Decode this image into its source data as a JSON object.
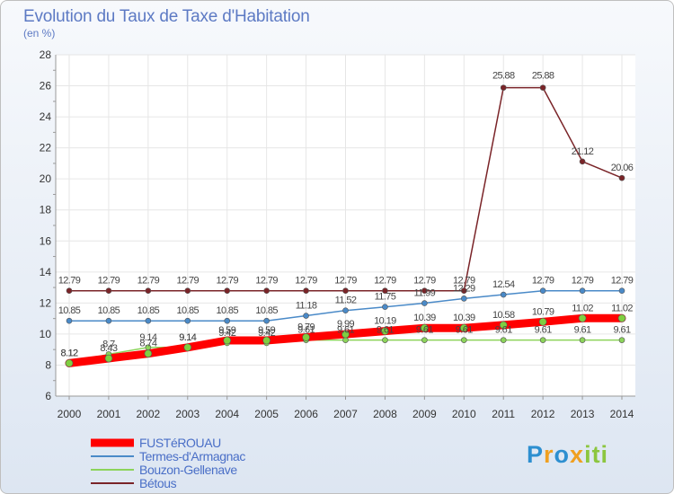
{
  "header": {
    "title": "Evolution du Taux de Taxe d'Habitation",
    "unit": "(en %)"
  },
  "logo": {
    "text": "Proxiti"
  },
  "chart_data": {
    "type": "line",
    "title": "Evolution du Taux de Taxe d'Habitation",
    "ylabel": "(en %)",
    "xlabel": "",
    "ylim": [
      6,
      28
    ],
    "yticks": [
      6,
      8,
      10,
      12,
      14,
      16,
      18,
      20,
      22,
      24,
      26,
      28
    ],
    "categories": [
      "2000",
      "2001",
      "2002",
      "2003",
      "2004",
      "2005",
      "2006",
      "2007",
      "2008",
      "2009",
      "2010",
      "2011",
      "2012",
      "2013",
      "2014"
    ],
    "grid": true,
    "legend": "bottom-left",
    "series": [
      {
        "name": "Bétous",
        "color": "#7a2428",
        "width": 1.5,
        "values": [
          12.79,
          12.79,
          12.79,
          12.79,
          12.79,
          12.79,
          12.79,
          12.79,
          12.79,
          12.79,
          12.79,
          25.88,
          25.88,
          21.12,
          20.06
        ],
        "labels": [
          "12.79",
          "12.79",
          "12.79",
          "12.79",
          "12.79",
          "12.79",
          "12.79",
          "12.79",
          "12.79",
          "12.79",
          "12.79",
          "25.88",
          "25.88",
          "21.12",
          "20.06"
        ]
      },
      {
        "name": "Termes-d'Armagnac",
        "color": "#4a8ac8",
        "width": 1.5,
        "values": [
          10.85,
          10.85,
          10.85,
          10.85,
          10.85,
          10.85,
          11.18,
          11.52,
          11.75,
          11.99,
          12.29,
          12.54,
          12.79,
          12.79,
          12.79
        ],
        "labels": [
          "10.85",
          "10.85",
          "10.85",
          "10.85",
          "10.85",
          "10.85",
          "11.18",
          "11.52",
          "11.75",
          "11.99",
          "12.29",
          "12.54",
          "12.79",
          "12.79",
          "12.79"
        ]
      },
      {
        "name": "Bouzon-Gellenave",
        "color": "#8cd45a",
        "width": 1.5,
        "values": [
          8.12,
          8.7,
          9.14,
          9.14,
          9.42,
          9.42,
          9.61,
          9.61,
          9.61,
          9.61,
          9.61,
          9.61,
          9.61,
          9.61,
          9.61
        ],
        "labels": [
          "8.12",
          "8.7",
          "9.14",
          "9.14",
          "9.42",
          "9.42",
          "9.61",
          "9.61",
          "9.61",
          "9.61",
          "9.61",
          "9.61",
          "9.61",
          "9.61",
          "9.61"
        ]
      },
      {
        "name": "FUSTéROUAU",
        "color": "#ff0000",
        "width": 9,
        "values": [
          8.12,
          8.43,
          8.74,
          9.14,
          9.59,
          9.59,
          9.79,
          9.99,
          10.19,
          10.39,
          10.39,
          10.58,
          10.79,
          11.02,
          11.02
        ],
        "labels": [
          "8.12",
          "8.43",
          "8.74",
          "9.14",
          "9.59",
          "9.59",
          "9.79",
          "9.99",
          "10.19",
          "10.39",
          "10.39",
          "10.58",
          "10.79",
          "11.02",
          "11.02"
        ]
      }
    ],
    "legend_order": [
      "FUSTéROUAU",
      "Termes-d'Armagnac",
      "Bouzon-Gellenave",
      "Bétous"
    ]
  }
}
